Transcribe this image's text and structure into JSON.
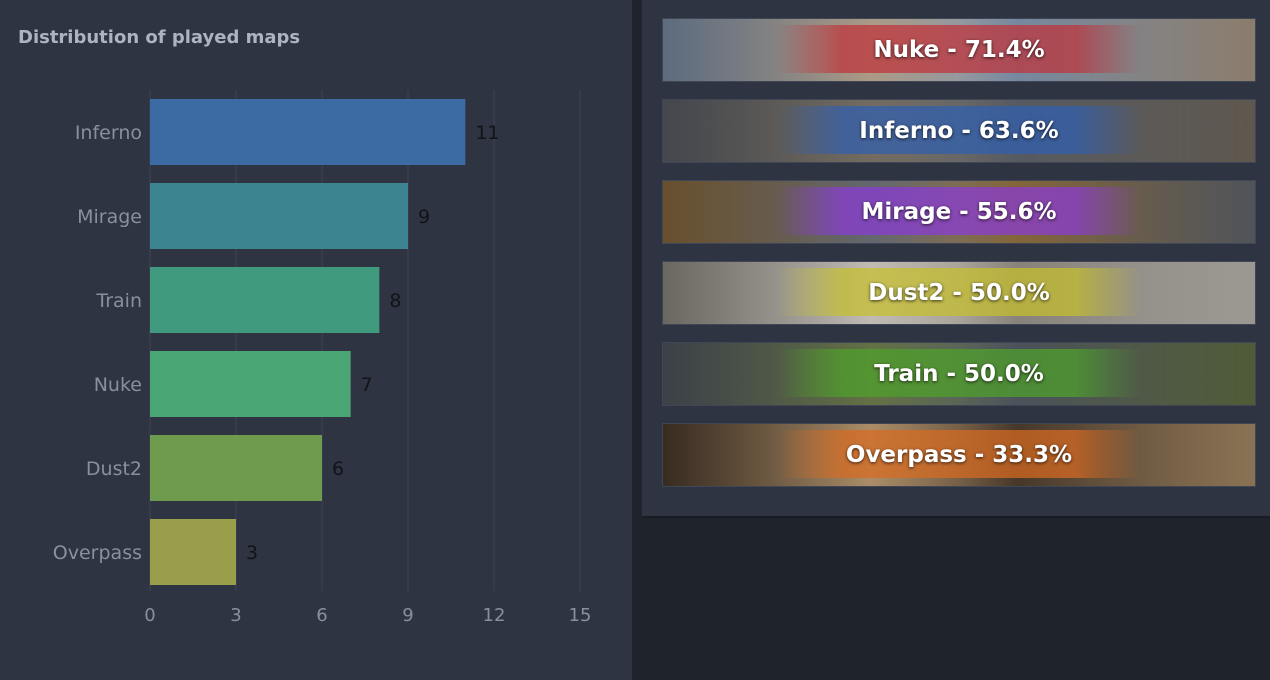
{
  "chart_data": {
    "type": "bar",
    "orientation": "horizontal",
    "title": "Distribution of played maps",
    "categories": [
      "Inferno",
      "Mirage",
      "Train",
      "Nuke",
      "Dust2",
      "Overpass"
    ],
    "values": [
      11,
      9,
      8,
      7,
      6,
      3
    ],
    "data_labels": [
      "11",
      "9",
      "8",
      "7",
      "6",
      "3"
    ],
    "xlim": [
      0,
      15
    ],
    "xticks": [
      0,
      3,
      6,
      9,
      12,
      15
    ],
    "xtick_labels": [
      "0",
      "3",
      "6",
      "9",
      "12",
      "15"
    ],
    "grid": true,
    "legend": "none",
    "colors": [
      "#3c6aa3",
      "#3c8590",
      "#3f9a7e",
      "#4aa574",
      "#6f9b4e",
      "#9a9e4b"
    ]
  },
  "win_rates": {
    "items": [
      {
        "map": "Nuke",
        "label": "Nuke - 71.4%",
        "percent": 71.4,
        "color": "#c0323a",
        "bg_a": "#7c8fa8",
        "bg_b": "#b9a690"
      },
      {
        "map": "Inferno",
        "label": "Inferno - 63.6%",
        "percent": 63.6,
        "color": "#2f5fb0",
        "bg_a": "#5a5e66",
        "bg_b": "#7d7468"
      },
      {
        "map": "Mirage",
        "label": "Mirage - 55.6%",
        "percent": 55.6,
        "color": "#8a3ad6",
        "bg_a": "#8a6a3c",
        "bg_b": "#6b6f78"
      },
      {
        "map": "Dust2",
        "label": "Dust2 - 50.0%",
        "percent": 50.0,
        "color": "#c7c02c",
        "bg_a": "#8e8a82",
        "bg_b": "#cfcac2"
      },
      {
        "map": "Train",
        "label": "Train - 50.0%",
        "percent": 50.0,
        "color": "#4ea12a",
        "bg_a": "#4f5660",
        "bg_b": "#6b7a4a"
      },
      {
        "map": "Overpass",
        "label": "Overpass - 33.3%",
        "percent": 33.3,
        "color": "#d86a20",
        "bg_a": "#4a3a2c",
        "bg_b": "#b89870"
      }
    ]
  }
}
